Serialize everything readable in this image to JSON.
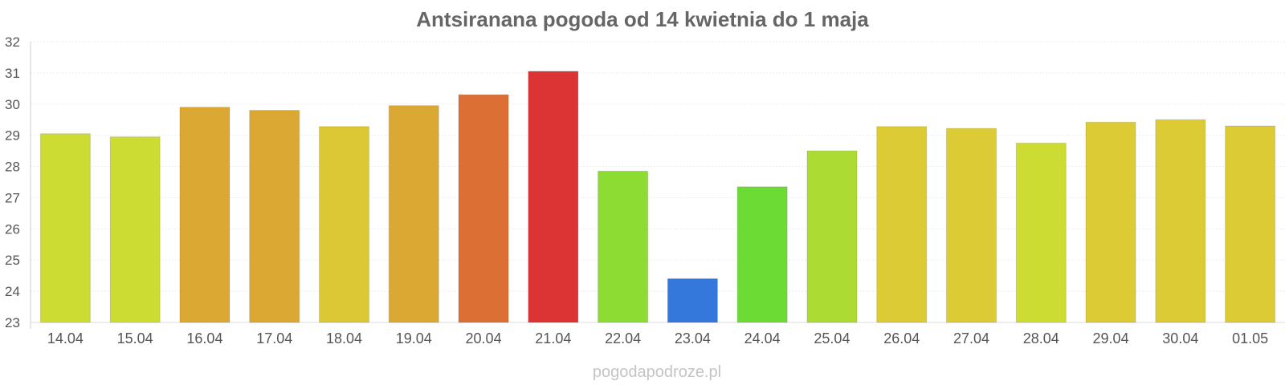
{
  "chart_data": {
    "type": "bar",
    "title": "Antsiranana pogoda od 14 kwietnia do 1 maja",
    "categories": [
      "14.04",
      "15.04",
      "16.04",
      "17.04",
      "18.04",
      "19.04",
      "20.04",
      "21.04",
      "22.04",
      "23.04",
      "24.04",
      "25.04",
      "26.04",
      "27.04",
      "28.04",
      "29.04",
      "30.04",
      "01.05"
    ],
    "values": [
      29.05,
      28.95,
      29.9,
      29.8,
      29.28,
      29.95,
      30.3,
      31.05,
      27.85,
      24.4,
      27.35,
      28.5,
      29.28,
      29.22,
      28.75,
      29.42,
      29.5,
      29.3
    ],
    "colors": [
      "#cddc33",
      "#cddc33",
      "#dca834",
      "#dca834",
      "#dcc834",
      "#dca834",
      "#dc6f34",
      "#dc3434",
      "#8cdc34",
      "#3478dc",
      "#6cdc34",
      "#acdc34",
      "#dccb34",
      "#dccb34",
      "#cddc33",
      "#dccb34",
      "#dccb34",
      "#dccb34"
    ],
    "ylim": [
      23,
      32
    ],
    "yticks": [
      23,
      24,
      25,
      26,
      27,
      28,
      29,
      30,
      31,
      32
    ],
    "grid": true,
    "xlabel": "",
    "ylabel": ""
  },
  "watermark": "pogodapodroze.pl"
}
